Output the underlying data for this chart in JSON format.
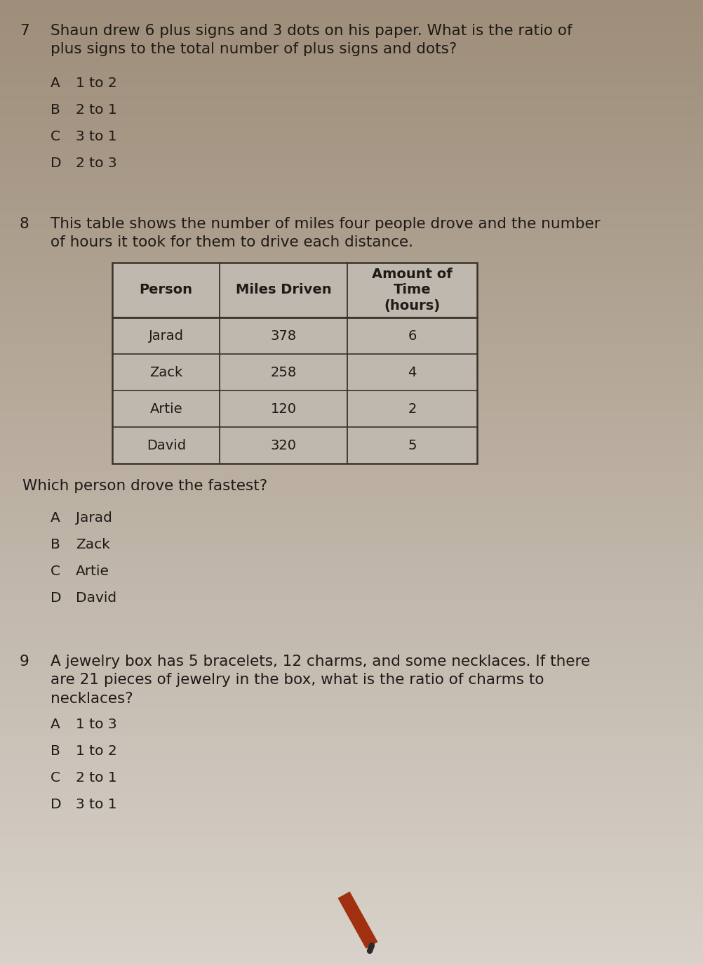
{
  "bg_color_top": "#9e8e7a",
  "bg_color_bottom": "#c8c0b4",
  "text_color": "#1e1a16",
  "q7_number": "7",
  "q7_text": "Shaun drew 6 plus signs and 3 dots on his paper. What is the ratio of\nplus signs to the total number of plus signs and dots?",
  "q7_options": [
    [
      "A",
      "1 to 2"
    ],
    [
      "B",
      "2 to 1"
    ],
    [
      "C",
      "3 to 1"
    ],
    [
      "D",
      "2 to 3"
    ]
  ],
  "q8_number": "8",
  "q8_text": "This table shows the number of miles four people drove and the number\nof hours it took for them to drive each distance.",
  "table_headers": [
    "Person",
    "Miles Driven",
    "Amount of\nTime\n(hours)"
  ],
  "table_data": [
    [
      "Jarad",
      "378",
      "6"
    ],
    [
      "Zack",
      "258",
      "4"
    ],
    [
      "Artie",
      "120",
      "2"
    ],
    [
      "David",
      "320",
      "5"
    ]
  ],
  "q8_sub": "Which person drove the fastest?",
  "q8_options": [
    [
      "A",
      "Jarad"
    ],
    [
      "B",
      "Zack"
    ],
    [
      "C",
      "Artie"
    ],
    [
      "D",
      "David"
    ]
  ],
  "q9_number": "9",
  "q9_text": "A jewelry box has 5 bracelets, 12 charms, and some necklaces. If there\nare 21 pieces of jewelry in the box, what is the ratio of charms to\nnecklaces?",
  "q9_options": [
    [
      "A",
      "1 to 3"
    ],
    [
      "B",
      "1 to 2"
    ],
    [
      "C",
      "2 to 1"
    ],
    [
      "D",
      "3 to 1"
    ]
  ]
}
